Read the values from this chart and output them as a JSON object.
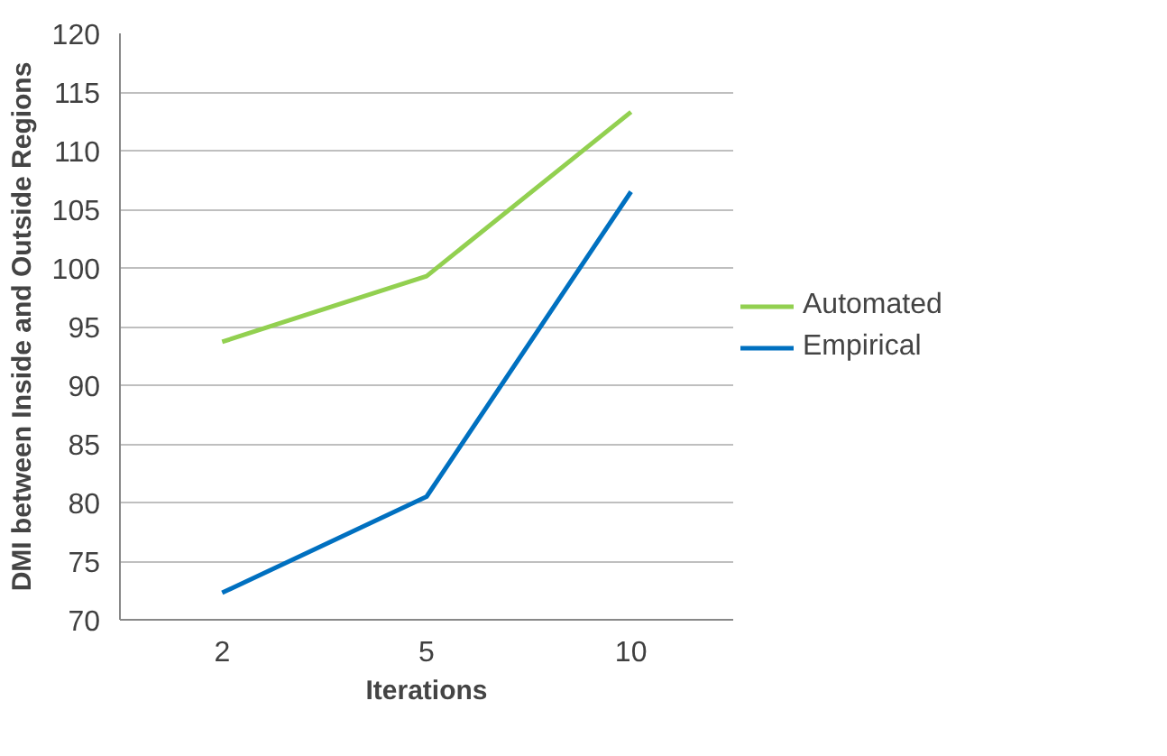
{
  "chart_data": {
    "type": "line",
    "xlabel": "Iterations",
    "ylabel": "DMI between Inside and Outside Regions",
    "categories": [
      "2",
      "5",
      "10"
    ],
    "series": [
      {
        "name": "Automated",
        "color": "#92d050",
        "values": [
          93.7,
          99.3,
          113.3
        ]
      },
      {
        "name": "Empirical",
        "color": "#0070c0",
        "values": [
          72.3,
          80.5,
          106.5
        ]
      }
    ],
    "ylim": [
      70,
      120
    ],
    "yticks": [
      70,
      75,
      80,
      85,
      90,
      95,
      100,
      105,
      110,
      115,
      120
    ],
    "grid": "y",
    "legend": "right",
    "line_style": "solid"
  }
}
